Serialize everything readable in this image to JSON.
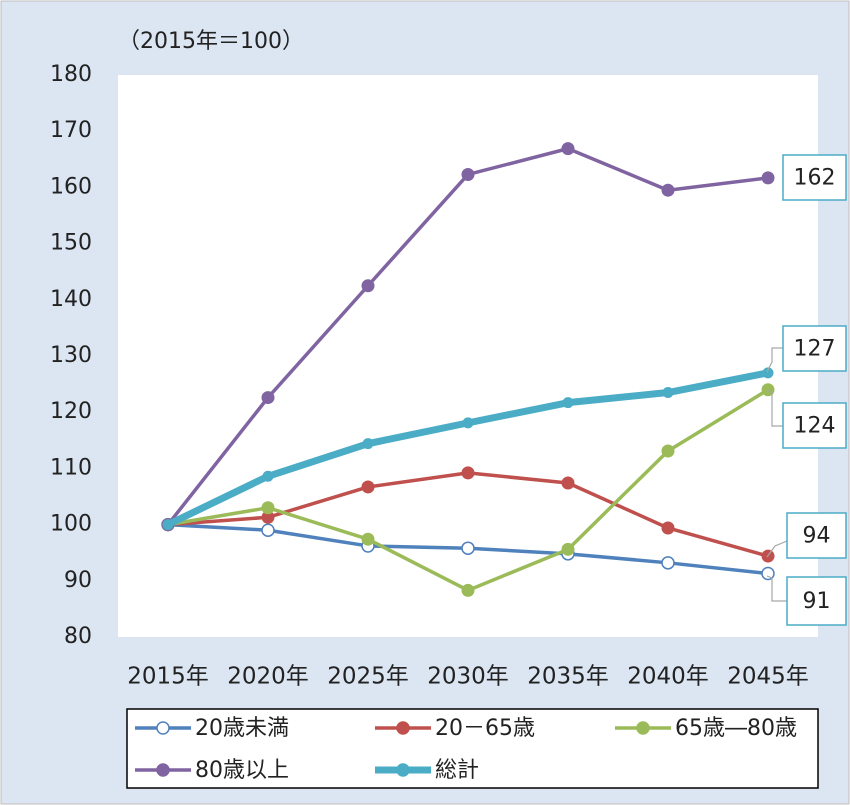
{
  "chart_data": {
    "type": "line",
    "title": "（2015年＝100）",
    "categories": [
      "2015年",
      "2020年",
      "2025年",
      "2030年",
      "2035年",
      "2040年",
      "2045年"
    ],
    "ylim": [
      80,
      180
    ],
    "yticks": [
      80,
      90,
      100,
      110,
      120,
      130,
      140,
      150,
      160,
      170,
      180
    ],
    "series": [
      {
        "name": "20歳未満",
        "color": "#4f81bd",
        "values": [
          100,
          99,
          96.2,
          95.8,
          94.8,
          93.2,
          91.3
        ],
        "value_labels": [
          null,
          null,
          null,
          null,
          null,
          null,
          "91"
        ]
      },
      {
        "name": "20－65歳",
        "color": "#c0504d",
        "values": [
          100,
          101.3,
          106.7,
          109.2,
          107.4,
          99.4,
          94.4
        ],
        "value_labels": [
          null,
          null,
          null,
          null,
          null,
          null,
          "94"
        ]
      },
      {
        "name": "65歳―80歳",
        "color": "#9bbb59",
        "values": [
          100,
          103,
          97.4,
          88.3,
          95.6,
          113.1,
          124
        ],
        "value_labels": [
          null,
          null,
          null,
          null,
          null,
          null,
          "124"
        ]
      },
      {
        "name": "80歳以上",
        "color": "#8064a2",
        "values": [
          100,
          122.6,
          142.5,
          162.3,
          166.9,
          159.5,
          161.7
        ],
        "value_labels": [
          null,
          null,
          null,
          null,
          null,
          null,
          "162"
        ]
      },
      {
        "name": "総計",
        "color": "#4bacc6",
        "values": [
          100,
          108.6,
          114.4,
          118.1,
          121.7,
          123.5,
          127
        ],
        "value_labels": [
          null,
          null,
          null,
          null,
          null,
          null,
          "127"
        ]
      }
    ]
  }
}
